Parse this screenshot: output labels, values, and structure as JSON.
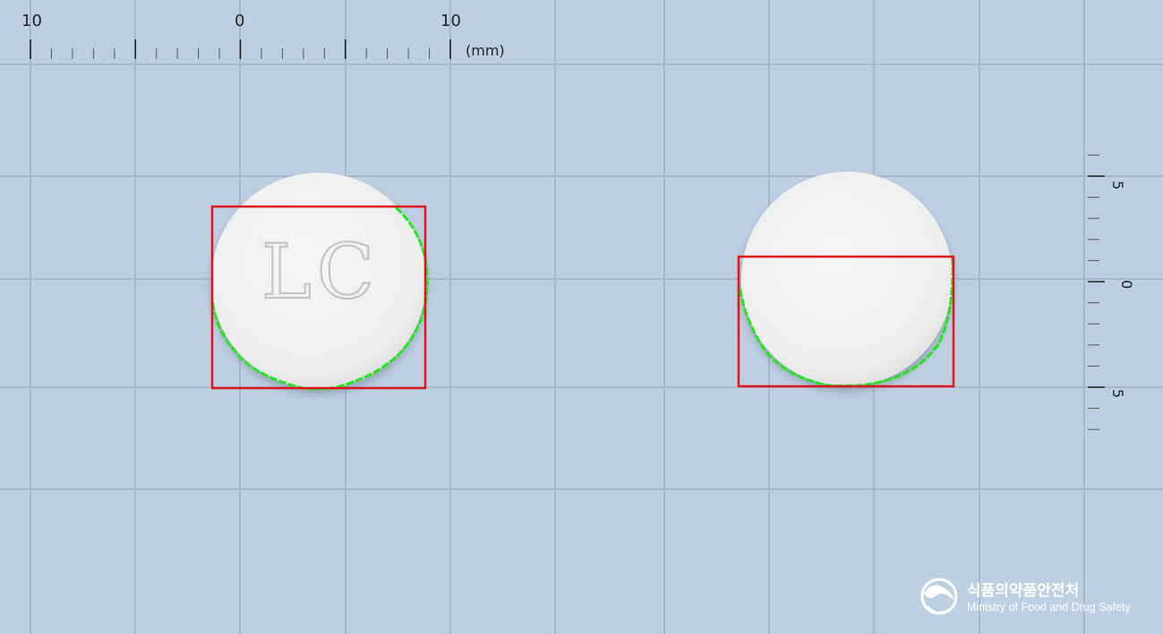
{
  "ruler_top": {
    "labels": [
      "10",
      "0",
      "10"
    ],
    "unit": "(mm)"
  },
  "ruler_right": {
    "labels": [
      "5",
      "0",
      "5"
    ]
  },
  "pills": [
    {
      "view": "front",
      "imprint": "LC",
      "color": "#f1f1f1"
    },
    {
      "view": "back",
      "imprint": "",
      "color": "#f1f1f1"
    }
  ],
  "overlay_colors": {
    "bounding_box": "#e0141b",
    "contour": "#22e61e",
    "grid": "#a7b8cc",
    "background": "#bfcfe2"
  },
  "logo": {
    "korean": "식품의약품안전처",
    "english": "Ministry of Food and Drug Safety"
  }
}
